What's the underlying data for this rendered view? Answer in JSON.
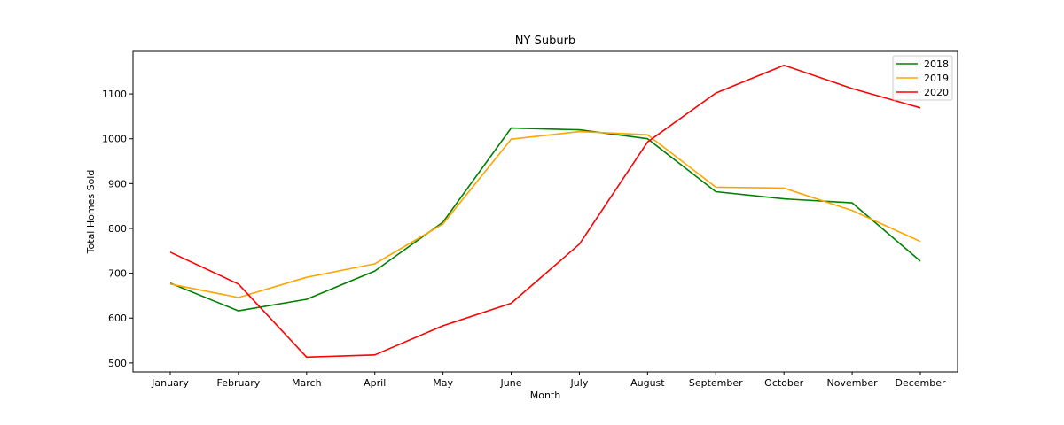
{
  "chart_data": {
    "type": "line",
    "title": "NY Suburb",
    "xlabel": "Month",
    "ylabel": "Total Homes Sold",
    "categories": [
      "January",
      "February",
      "March",
      "April",
      "May",
      "June",
      "July",
      "August",
      "September",
      "October",
      "November",
      "December"
    ],
    "series": [
      {
        "name": "2018",
        "color": "#008000",
        "values": [
          678,
          616,
          642,
          705,
          814,
          1024,
          1020,
          1000,
          882,
          866,
          857,
          727
        ]
      },
      {
        "name": "2019",
        "color": "#ffa500",
        "values": [
          676,
          646,
          691,
          721,
          810,
          999,
          1016,
          1009,
          892,
          890,
          840,
          771
        ]
      },
      {
        "name": "2020",
        "color": "#ff0000",
        "values": [
          747,
          676,
          513,
          518,
          583,
          633,
          765,
          993,
          1102,
          1164,
          1112,
          1069
        ]
      }
    ],
    "ylim": [
      480,
      1195
    ],
    "yticks": [
      500,
      600,
      700,
      800,
      900,
      1000,
      1100
    ],
    "grid": false,
    "legend": "top-right"
  }
}
